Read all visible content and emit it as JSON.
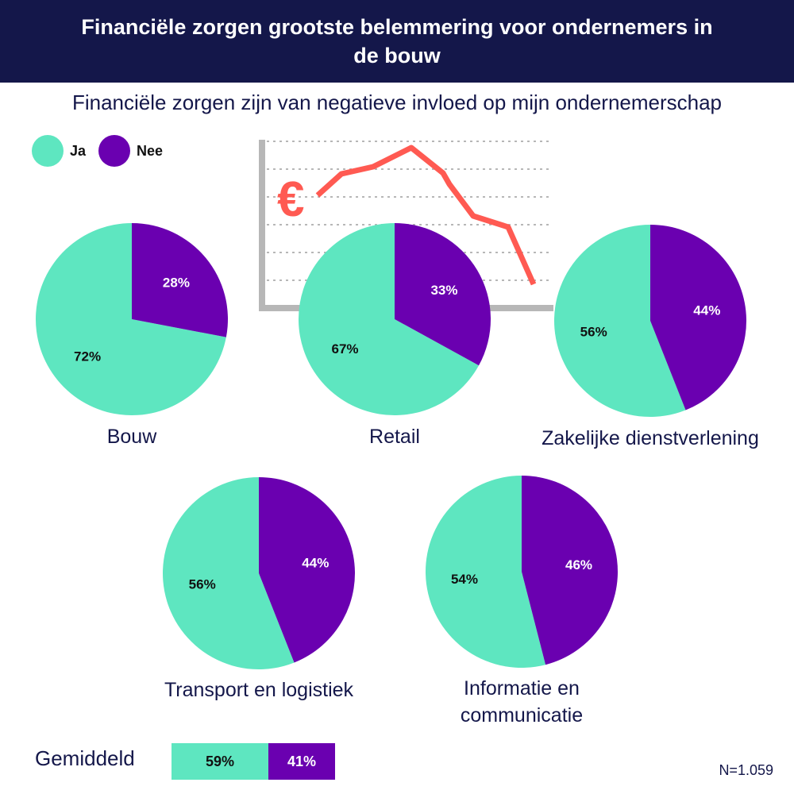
{
  "title": "Financiële zorgen grootste belemmering voor ondernemers in de bouw",
  "subtitle": "Financiële zorgen zijn van negatieve invloed op mijn ondernemerschap",
  "legend": [
    {
      "label": "Ja",
      "color": "#5ee6c0"
    },
    {
      "label": "Nee",
      "color": "#6a00b0"
    }
  ],
  "decoration": {
    "currency_symbol": "€",
    "icon": "euro-trend-down-icon",
    "line_color": "#ff5a52",
    "axis_color": "#b7b7b7"
  },
  "chart_data": {
    "type": "pie",
    "series_names": [
      "Ja",
      "Nee"
    ],
    "colors": {
      "Ja": "#5ee6c0",
      "Nee": "#6a00b0"
    },
    "pies": [
      {
        "name": "Bouw",
        "ja": 72,
        "nee": 28,
        "ja_label": "72%",
        "nee_label": "28%"
      },
      {
        "name": "Retail",
        "ja": 67,
        "nee": 33,
        "ja_label": "67%",
        "nee_label": "33%"
      },
      {
        "name": "Zakelijke dienstverlening",
        "ja": 56,
        "nee": 44,
        "ja_label": "56%",
        "nee_label": "44%"
      },
      {
        "name": "Transport en logistiek",
        "ja": 56,
        "nee": 44,
        "ja_label": "56%",
        "nee_label": "44%"
      },
      {
        "name": "Informatie en communicatie",
        "ja": 54,
        "nee": 46,
        "ja_label": "54%",
        "nee_label": "46%"
      }
    ],
    "average": {
      "label": "Gemiddeld",
      "ja": 59,
      "nee": 41,
      "ja_label": "59%",
      "nee_label": "41%"
    }
  },
  "footnote": "N=1.059"
}
